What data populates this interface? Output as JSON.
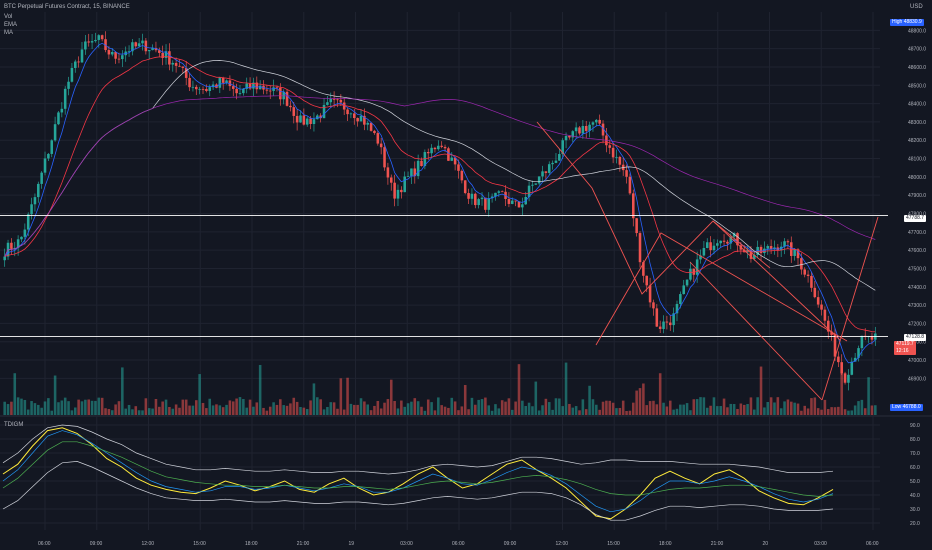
{
  "header": {
    "title": "BTC Perpetual Futures Contract, 15, BINANCE",
    "indicators": [
      "Vol",
      "EMA",
      "MA"
    ]
  },
  "price_axis": {
    "currency": "USD",
    "high_label": "High",
    "high_value": "48830.9",
    "low_label": "Low",
    "low_value": "46788.0",
    "level_upper": "47788.7",
    "level_lower": "47128.8",
    "last_price": "47119.7",
    "countdown": "12:16"
  },
  "oscillator": {
    "name": "TDIGM"
  },
  "chart_data": [
    {
      "type": "candlestick",
      "title": "BTC Perpetual Futures Contract, 15, BINANCE",
      "xlabel": "",
      "ylabel": "",
      "ylim": [
        46700,
        48900
      ],
      "yticks": [
        46900,
        47000,
        47100,
        47200,
        47300,
        47400,
        47500,
        47600,
        47700,
        47800,
        47900,
        48000,
        48100,
        48200,
        48300,
        48400,
        48500,
        48600,
        48700,
        48800
      ],
      "xticks": [
        "06:00",
        "09:00",
        "12:00",
        "15:00",
        "18:00",
        "21:00",
        "19",
        "03:00",
        "06:00",
        "09:00",
        "12:00",
        "15:00",
        "18:00",
        "21:00",
        "20",
        "03:00",
        "06:00"
      ],
      "horizontal_levels": [
        47788.7,
        47128.8
      ],
      "close_path": [
        47600,
        47650,
        47900,
        48200,
        48500,
        48700,
        48750,
        48650,
        48700,
        48720,
        48680,
        48620,
        48500,
        48480,
        48520,
        48450,
        48500,
        48480,
        48440,
        48300,
        48320,
        48400,
        48380,
        48320,
        48200,
        47900,
        48000,
        48100,
        48200,
        48050,
        47880,
        47850,
        47900,
        47830,
        47960,
        48050,
        48180,
        48260,
        48300,
        48150,
        48000,
        47500,
        47180,
        47230,
        47450,
        47600,
        47680,
        47660,
        47570,
        47600,
        47640,
        47560,
        47400,
        47150,
        46900,
        47100,
        47120
      ],
      "high": 48830.9,
      "low": 46788.0
    },
    {
      "type": "line",
      "title": "TDIGM",
      "ylim": [
        15,
        95
      ],
      "yticks": [
        20,
        30,
        40,
        50,
        60,
        70,
        80,
        90
      ],
      "series": [
        {
          "values": [
            55,
            62,
            75,
            86,
            88,
            84,
            76,
            66,
            60,
            52,
            47,
            44,
            42,
            41,
            45,
            50,
            47,
            43,
            46,
            50,
            44,
            42,
            48,
            52,
            45,
            40,
            42,
            48,
            55,
            60,
            52,
            45,
            48,
            55,
            62,
            65,
            58,
            52,
            45,
            35,
            25,
            23,
            30,
            40,
            52,
            57,
            52,
            48,
            55,
            58,
            52,
            43,
            38,
            34,
            33,
            38,
            44
          ]
        },
        {
          "values": [
            50,
            58,
            70,
            82,
            86,
            83,
            77,
            70,
            63,
            56,
            50,
            46,
            44,
            42,
            43,
            46,
            46,
            44,
            45,
            47,
            45,
            43,
            45,
            48,
            46,
            42,
            42,
            45,
            50,
            55,
            52,
            48,
            47,
            51,
            56,
            60,
            58,
            54,
            48,
            40,
            32,
            28,
            30,
            36,
            44,
            50,
            50,
            48,
            50,
            53,
            50,
            46,
            41,
            37,
            35,
            37,
            41
          ]
        },
        {
          "values": [
            45,
            52,
            62,
            72,
            78,
            78,
            75,
            71,
            67,
            62,
            57,
            53,
            51,
            49,
            48,
            47,
            47,
            46,
            46,
            47,
            46,
            45,
            45,
            46,
            46,
            45,
            44,
            45,
            47,
            49,
            50,
            49,
            48,
            49,
            51,
            53,
            54,
            53,
            51,
            48,
            44,
            41,
            40,
            40,
            42,
            44,
            45,
            45,
            46,
            47,
            47,
            46,
            44,
            42,
            40,
            39,
            40
          ]
        },
        {
          "values": [
            63,
            70,
            80,
            88,
            90,
            89,
            85,
            80,
            76,
            70,
            66,
            62,
            60,
            58,
            58,
            59,
            58,
            57,
            57,
            58,
            57,
            56,
            56,
            57,
            57,
            56,
            55,
            56,
            58,
            61,
            62,
            61,
            60,
            61,
            64,
            67,
            67,
            66,
            64,
            62,
            63,
            65,
            65,
            64,
            64,
            64,
            63,
            62,
            62,
            62,
            61,
            60,
            58,
            56,
            56,
            56,
            57
          ]
        },
        {
          "values": [
            30,
            36,
            46,
            56,
            63,
            64,
            60,
            55,
            50,
            45,
            41,
            38,
            37,
            36,
            36,
            37,
            36,
            35,
            35,
            36,
            35,
            34,
            34,
            35,
            35,
            34,
            33,
            34,
            36,
            38,
            39,
            38,
            37,
            38,
            40,
            42,
            42,
            41,
            38,
            33,
            26,
            22,
            22,
            25,
            29,
            32,
            32,
            31,
            32,
            33,
            33,
            32,
            30,
            29,
            29,
            29,
            30
          ]
        }
      ]
    }
  ],
  "colors": {
    "background": "#131722",
    "up": "#26a69a",
    "down": "#ef5350",
    "grid": "#1f2330",
    "axis_text": "#b2b5be",
    "ema_fast": "#2962ff",
    "ema_slow": "#f23645",
    "ma_long": "#d1d4dc",
    "ma_purple": "#9c27b0",
    "tdi_yellow": "#ffeb3b",
    "tdi_blue": "#2196f3",
    "tdi_green": "#4caf50",
    "tdi_band": "#d1d4dc",
    "drawing": "#ef5350",
    "level_line": "#ffffff"
  }
}
